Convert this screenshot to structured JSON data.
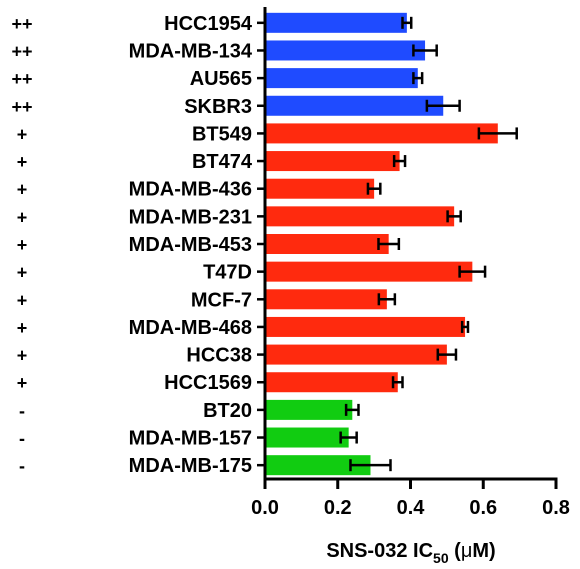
{
  "chart_data": {
    "type": "bar",
    "orientation": "horizontal",
    "categories": [
      "HCC1954",
      "MDA-MB-134",
      "AU565",
      "SKBR3",
      "BT549",
      "BT474",
      "MDA-MB-436",
      "MDA-MB-231",
      "MDA-MB-453",
      "T47D",
      "MCF-7",
      "MDA-MB-468",
      "HCC38",
      "HCC1569",
      "BT20",
      "MDA-MB-157",
      "MDA-MB-175"
    ],
    "groups": [
      "++",
      "++",
      "++",
      "++",
      "+",
      "+",
      "+",
      "+",
      "+",
      "+",
      "+",
      "+",
      "+",
      "+",
      "-",
      "-",
      "-"
    ],
    "values": [
      0.39,
      0.44,
      0.42,
      0.49,
      0.64,
      0.37,
      0.3,
      0.52,
      0.34,
      0.57,
      0.335,
      0.55,
      0.5,
      0.365,
      0.24,
      0.23,
      0.29
    ],
    "errors": [
      0.012,
      0.032,
      0.012,
      0.045,
      0.052,
      0.015,
      0.017,
      0.018,
      0.028,
      0.035,
      0.022,
      0.008,
      0.025,
      0.013,
      0.017,
      0.022,
      0.055
    ],
    "group_colors": {
      "++": "#1f4bff",
      "+": "#ff2a0e",
      "-": "#11cc11"
    },
    "x_ticks": [
      0.0,
      0.2,
      0.4,
      0.6,
      0.8
    ],
    "x_tick_labels": [
      "0.0",
      "0.2",
      "0.4",
      "0.6",
      "0.8"
    ],
    "xlim": [
      0,
      0.8
    ],
    "xlabel_parts": [
      "SNS-032 IC",
      "50",
      " (",
      "μ",
      "M)"
    ],
    "grid": false,
    "legend": "none"
  }
}
